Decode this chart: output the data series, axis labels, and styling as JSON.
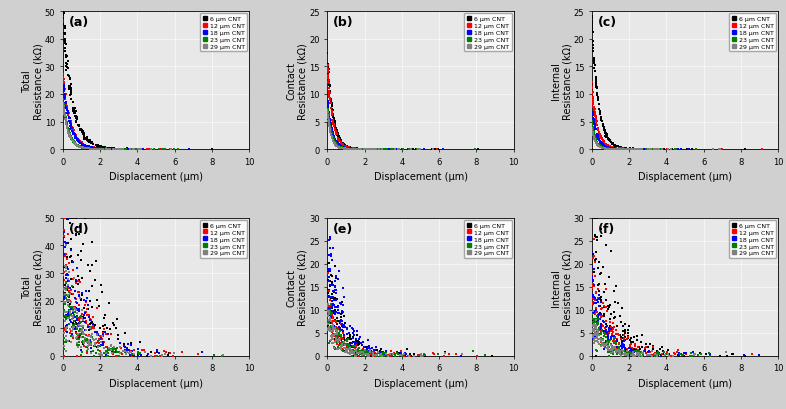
{
  "panels": [
    {
      "label": "a",
      "ylabel_top": "Total",
      "ylabel_bot": "Resistance (kΩ)",
      "ylim": [
        0,
        50
      ],
      "yticks": [
        0,
        10,
        20,
        30,
        40,
        50
      ]
    },
    {
      "label": "b",
      "ylabel_top": "Contact",
      "ylabel_bot": "Resistance (kΩ)",
      "ylim": [
        0,
        25
      ],
      "yticks": [
        0,
        5,
        10,
        15,
        20,
        25
      ]
    },
    {
      "label": "c",
      "ylabel_top": "Internal",
      "ylabel_bot": "Resistance (kΩ)",
      "ylim": [
        0,
        25
      ],
      "yticks": [
        0,
        5,
        10,
        15,
        20,
        25
      ]
    },
    {
      "label": "d",
      "ylabel_top": "Total",
      "ylabel_bot": "Resistance (kΩ)",
      "ylim": [
        0,
        50
      ],
      "yticks": [
        0,
        10,
        20,
        30,
        40,
        50
      ]
    },
    {
      "label": "e",
      "ylabel_top": "Contact",
      "ylabel_bot": "Resistance (kΩ)",
      "ylim": [
        0,
        30
      ],
      "yticks": [
        0,
        5,
        10,
        15,
        20,
        25,
        30
      ]
    },
    {
      "label": "f",
      "ylabel_top": "Internal",
      "ylabel_bot": "Resistance (kΩ)",
      "ylim": [
        0,
        30
      ],
      "yticks": [
        0,
        5,
        10,
        15,
        20,
        25,
        30
      ]
    }
  ],
  "colors": [
    "black",
    "red",
    "blue",
    "green",
    "gray"
  ],
  "legend_labels": [
    "6 μm CNT",
    "12 μm CNT",
    "18 μm CNT",
    "23 μm CNT",
    "29 μm CNT"
  ],
  "xlabel": "Displacement (μm)",
  "xlim": [
    0,
    10
  ],
  "xticks": [
    0,
    2,
    4,
    6,
    8,
    10
  ],
  "bg_color": "#e8e8e8",
  "panel_params": [
    [
      [
        49,
        35,
        0.05,
        0.5,
        0.08,
        0
      ],
      [
        26,
        22,
        0.05,
        0.4,
        0.06,
        10
      ],
      [
        24,
        20,
        0.05,
        0.4,
        0.06,
        20
      ],
      [
        18,
        16,
        0.05,
        0.3,
        0.05,
        30
      ],
      [
        17,
        15,
        0.05,
        0.3,
        0.05,
        40
      ]
    ],
    [
      [
        17,
        10,
        0.02,
        0.3,
        0.04,
        100
      ],
      [
        15,
        9,
        0.02,
        0.28,
        0.035,
        110
      ],
      [
        9,
        7,
        0.02,
        0.25,
        0.03,
        120
      ],
      [
        8,
        6,
        0.02,
        0.22,
        0.028,
        130
      ],
      [
        7,
        5,
        0.02,
        0.2,
        0.025,
        140
      ]
    ],
    [
      [
        23,
        11,
        0.02,
        0.35,
        0.05,
        200
      ],
      [
        11,
        9,
        0.02,
        0.3,
        0.04,
        210
      ],
      [
        8,
        7,
        0.02,
        0.25,
        0.035,
        220
      ],
      [
        5,
        4,
        0.02,
        0.2,
        0.03,
        230
      ],
      [
        4,
        3,
        0.02,
        0.18,
        0.025,
        240
      ]
    ],
    [
      [
        48,
        31,
        0.3,
        1.5,
        0.5,
        300
      ],
      [
        31,
        20,
        0.3,
        1.2,
        0.45,
        310
      ],
      [
        30,
        20,
        0.3,
        1.2,
        0.45,
        320
      ],
      [
        20,
        14,
        0.3,
        1.0,
        0.4,
        330
      ],
      [
        25,
        14,
        0.3,
        1.0,
        0.4,
        340
      ]
    ],
    [
      [
        15,
        10,
        0.2,
        0.8,
        0.35,
        400
      ],
      [
        10,
        8,
        0.2,
        0.7,
        0.3,
        410
      ],
      [
        20,
        12,
        0.2,
        0.8,
        0.35,
        420
      ],
      [
        10,
        7,
        0.2,
        0.6,
        0.28,
        430
      ],
      [
        8,
        6,
        0.2,
        0.55,
        0.25,
        440
      ]
    ],
    [
      [
        27,
        15,
        0.2,
        1.0,
        0.4,
        500
      ],
      [
        15,
        10,
        0.2,
        0.9,
        0.35,
        510
      ],
      [
        13,
        9,
        0.2,
        0.8,
        0.3,
        520
      ],
      [
        8,
        6,
        0.2,
        0.7,
        0.28,
        530
      ],
      [
        7,
        5,
        0.2,
        0.6,
        0.25,
        540
      ]
    ]
  ]
}
